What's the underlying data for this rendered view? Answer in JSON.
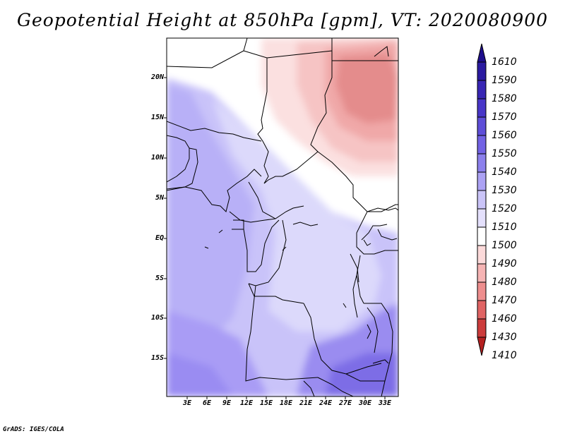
{
  "title": "Geopotential Height at 850hPa [gpm], VT: 2020080900",
  "credit": "GrADS: IGES/COLA",
  "lat_labels": [
    "20N",
    "15N",
    "10N",
    "5N",
    "EQ",
    "5S",
    "10S",
    "15S"
  ],
  "lon_labels": [
    "3E",
    "6E",
    "9E",
    "12E",
    "15E",
    "18E",
    "21E",
    "24E",
    "27E",
    "30E",
    "33E"
  ],
  "colorbar": {
    "labels": [
      "1610",
      "1590",
      "1580",
      "1570",
      "1560",
      "1550",
      "1540",
      "1530",
      "1520",
      "1510",
      "1500",
      "1490",
      "1480",
      "1470",
      "1460",
      "1430",
      "1410"
    ],
    "colors": [
      "#1e0e8c",
      "#2a1aa0",
      "#3826b4",
      "#4836c8",
      "#5e4ed8",
      "#7262e4",
      "#8c80ec",
      "#aca2f4",
      "#cac4f8",
      "#e4e0fc",
      "#ffffff",
      "#fcdada",
      "#f6b4b4",
      "#ee8e8e",
      "#e06464",
      "#cc3c3c",
      "#b42020"
    ]
  },
  "legend": {
    "min_value": "1410",
    "max_value": "1610",
    "units": "gpm"
  },
  "colors": {
    "height_high": "#ad9ff4",
    "height_mid": "#dcd9fb",
    "height_neutral": "#ffffff",
    "height_low": "#f2a7a7",
    "borders": "#000000"
  }
}
